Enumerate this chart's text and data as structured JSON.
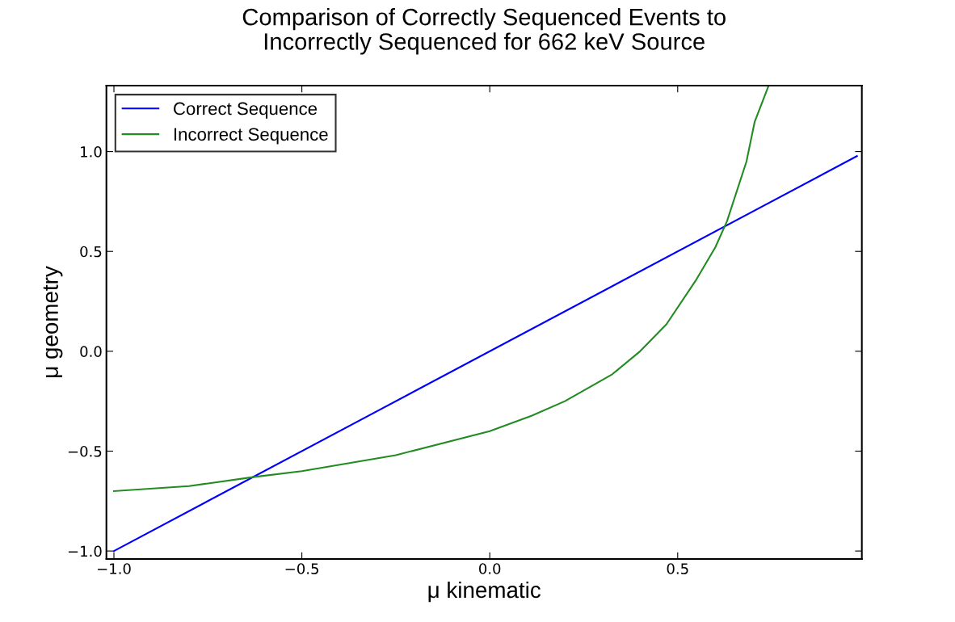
{
  "chart_data": {
    "type": "line",
    "title": "Comparison of Correctly Sequenced Events to\nIncorrectly Sequenced for 662 keV Source",
    "xlabel": "μ kinematic",
    "ylabel": "μ geometry",
    "xlim": [
      -1.02,
      0.99
    ],
    "ylim": [
      -1.04,
      1.33
    ],
    "xticks": [
      {
        "value": -1.0,
        "label": "−1.0"
      },
      {
        "value": -0.5,
        "label": "−0.5"
      },
      {
        "value": 0.0,
        "label": "0.0"
      },
      {
        "value": 0.5,
        "label": "0.5"
      }
    ],
    "yticks": [
      {
        "value": -1.0,
        "label": "−1.0"
      },
      {
        "value": -0.5,
        "label": "−0.5"
      },
      {
        "value": 0.0,
        "label": "0.0"
      },
      {
        "value": 0.5,
        "label": "0.5"
      },
      {
        "value": 1.0,
        "label": "1.0"
      }
    ],
    "grid": false,
    "legend": "top left",
    "line_style": "solid",
    "series": [
      {
        "name": "Correct Sequence",
        "color": "#0000ff",
        "x": [
          -1.0,
          0.977
        ],
        "values": [
          -1.0,
          0.977
        ]
      },
      {
        "name": "Incorrect Sequence",
        "color": "#228b22",
        "x": [
          -1.0,
          -0.8,
          -0.63,
          -0.5,
          -0.25,
          0.0,
          0.111,
          0.2,
          0.326,
          0.4,
          0.47,
          0.55,
          0.6,
          0.631,
          0.683,
          0.705,
          0.742
        ],
        "values": [
          -0.7,
          -0.675,
          -0.63,
          -0.6,
          -0.52,
          -0.4,
          -0.323,
          -0.25,
          -0.115,
          0.0,
          0.135,
          0.36,
          0.52,
          0.65,
          0.95,
          1.15,
          1.33
        ]
      }
    ]
  }
}
